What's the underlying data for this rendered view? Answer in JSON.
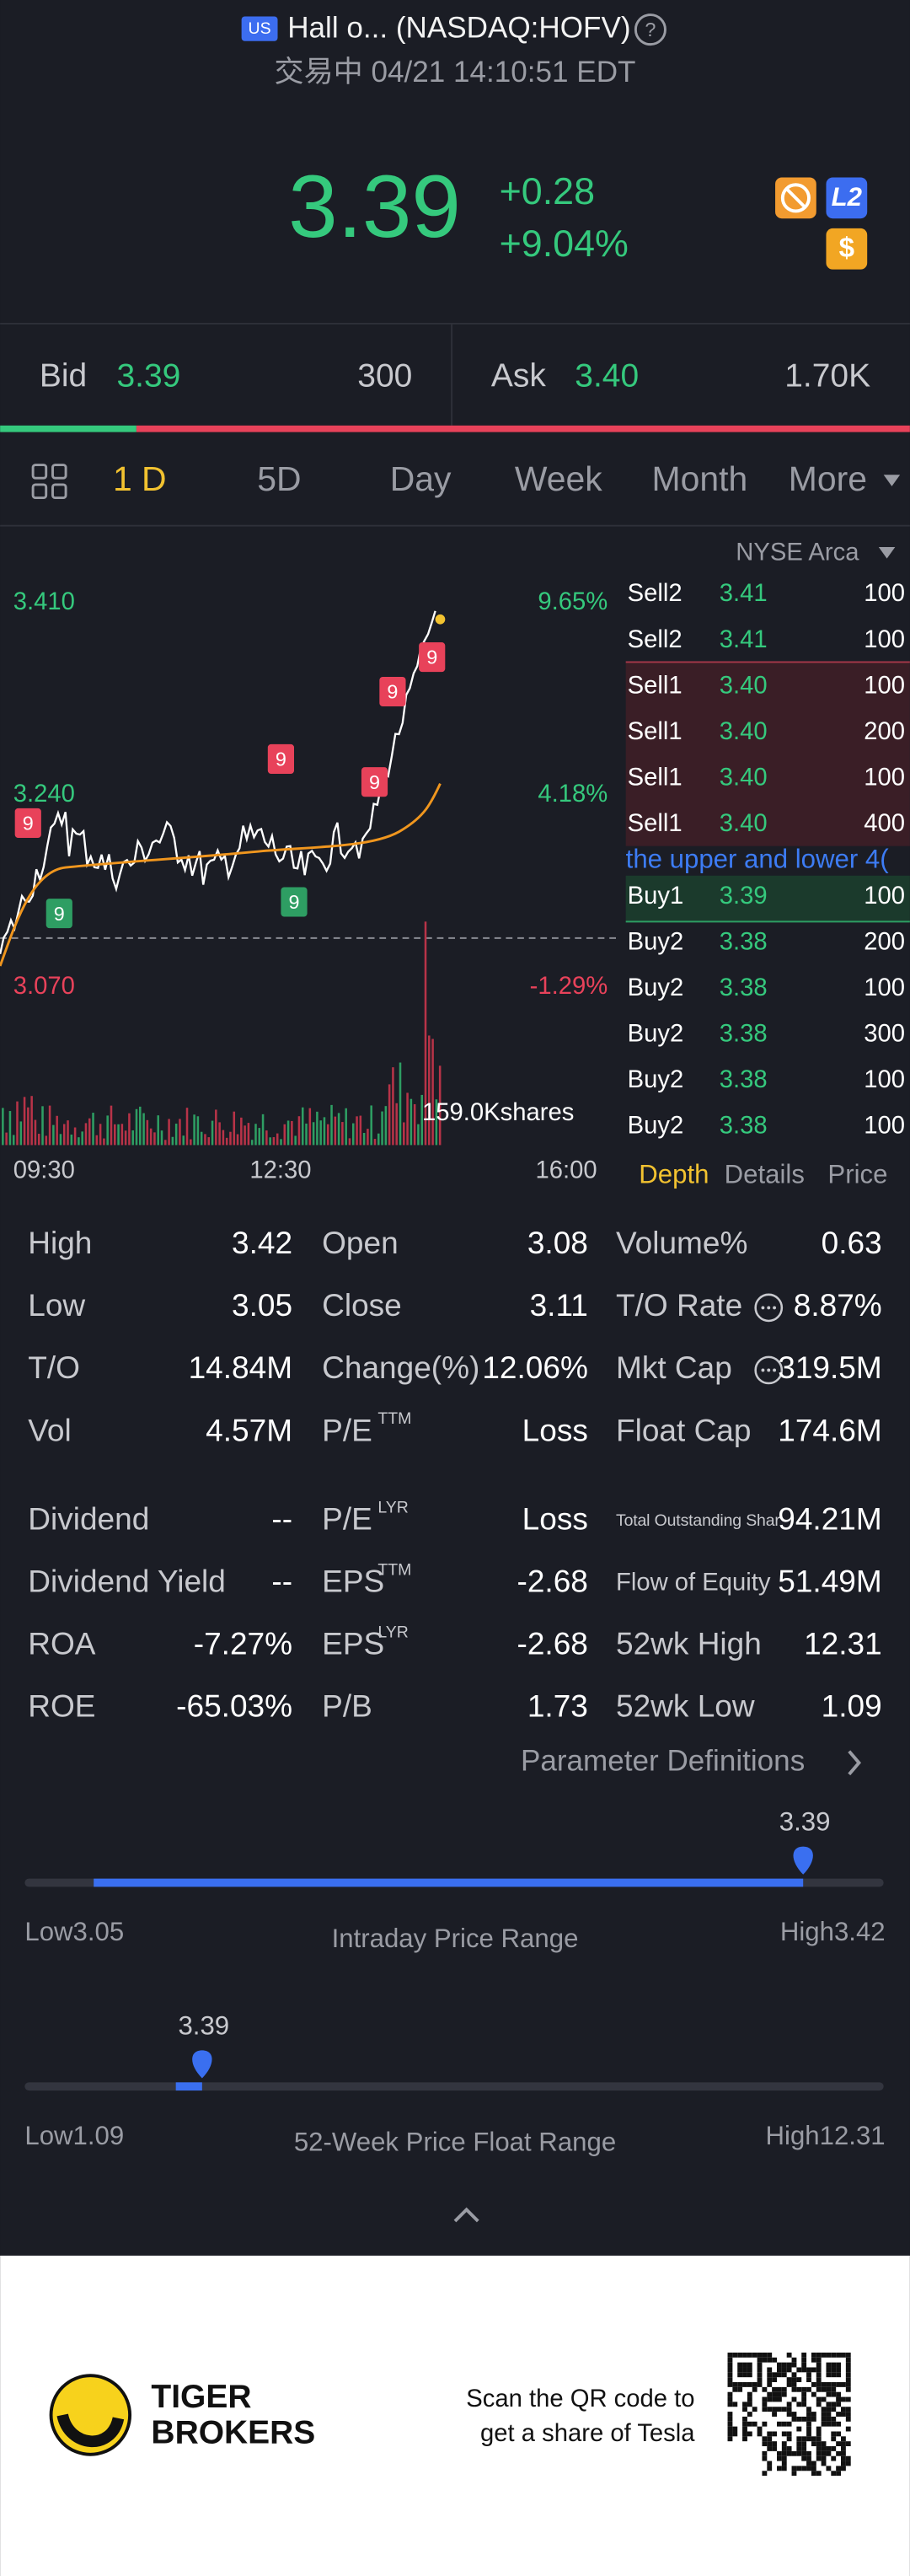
{
  "header": {
    "market": "US",
    "name": "Hall o... (NASDAQ:HOFV)",
    "status": "交易中 04/21 14:10:51 EDT"
  },
  "quote": {
    "price": "3.39",
    "change": "+0.28",
    "change_pct": "+9.04%"
  },
  "badges": {
    "level": "L2",
    "currency": "$"
  },
  "bid_ask": {
    "bid_label": "Bid",
    "bid": "3.39",
    "bid_size": "300",
    "ask_label": "Ask",
    "ask": "3.40",
    "ask_size": "1.70K"
  },
  "tabs": [
    "1 D",
    "5D",
    "Day",
    "Week",
    "Month",
    "More"
  ],
  "chart": {
    "price_labels": [
      "3.410",
      "3.240",
      "3.070"
    ],
    "pct_labels": [
      "9.65%",
      "4.18%",
      "-1.29%"
    ],
    "time_labels": [
      "09:30",
      "12:30",
      "16:00"
    ],
    "volume_label": "159.0Kshares",
    "markers": [
      "9",
      "9",
      "9",
      "9",
      "9",
      "9",
      "9"
    ]
  },
  "order_book": {
    "exchange": "NYSE Arca",
    "rows": [
      [
        "Sell2",
        "3.41",
        "100"
      ],
      [
        "Sell2",
        "3.41",
        "100"
      ],
      [
        "Sell1",
        "3.40",
        "100"
      ],
      [
        "Sell1",
        "3.40",
        "200"
      ],
      [
        "Sell1",
        "3.40",
        "100"
      ],
      [
        "Sell1",
        "3.40",
        "400"
      ],
      [
        "Buy1",
        "3.39",
        "100"
      ],
      [
        "Buy2",
        "3.38",
        "200"
      ],
      [
        "Buy2",
        "3.38",
        "100"
      ],
      [
        "Buy2",
        "3.38",
        "300"
      ],
      [
        "Buy2",
        "3.38",
        "100"
      ],
      [
        "Buy2",
        "3.38",
        "100"
      ]
    ],
    "note": "the upper and lower 4(",
    "tabs": [
      "Depth",
      "Details",
      "Price"
    ]
  },
  "stats": [
    [
      {
        "label": "High",
        "value": "3.42"
      },
      {
        "label": "Open",
        "value": "3.08"
      },
      {
        "label": "Volume%",
        "value": "0.63"
      }
    ],
    [
      {
        "label": "Low",
        "value": "3.05"
      },
      {
        "label": "Close",
        "value": "3.11"
      },
      {
        "label": "T/O Rate",
        "value": "8.87%"
      }
    ],
    [
      {
        "label": "T/O",
        "value": "14.84M"
      },
      {
        "label": "Change(%)",
        "value": "12.06%"
      },
      {
        "label": "Mkt Cap",
        "value": "319.5M"
      }
    ],
    [
      {
        "label": "Vol",
        "value": "4.57M"
      },
      {
        "label": "P/E",
        "sup": "TTM",
        "value": "Loss"
      },
      {
        "label": "Float Cap",
        "value": "174.6M"
      }
    ],
    [
      {
        "label": "Dividend",
        "value": "--"
      },
      {
        "label": "P/E",
        "sup": "LYR",
        "value": "Loss"
      },
      {
        "label": "Total Outstanding Shar",
        "value": "94.21M"
      }
    ],
    [
      {
        "label": "Dividend Yield",
        "value": "--"
      },
      {
        "label": "EPS",
        "sup": "TTM",
        "value": "-2.68"
      },
      {
        "label": "Flow of Equity",
        "value": "51.49M"
      }
    ],
    [
      {
        "label": "ROA",
        "value": "-7.27%"
      },
      {
        "label": "EPS",
        "sup": "LYR",
        "value": "-2.68"
      },
      {
        "label": "52wk High",
        "value": "12.31"
      }
    ],
    [
      {
        "label": "ROE",
        "value": "-65.03%"
      },
      {
        "label": "P/B",
        "value": "1.73"
      },
      {
        "label": "52wk Low",
        "value": "1.09"
      }
    ]
  ],
  "definitions_link": "Parameter Definitions",
  "ranges": [
    {
      "current": "3.39",
      "low": "Low3.05",
      "title": "Intraday Price Range",
      "high": "High3.42"
    },
    {
      "current": "3.39",
      "low": "Low1.09",
      "title": "52-Week Price Float Range",
      "high": "High12.31"
    }
  ],
  "footer": {
    "brand": [
      "TIGER",
      "BROKERS"
    ],
    "promo": [
      "Scan the QR code to",
      "get a share of Tesla"
    ]
  }
}
